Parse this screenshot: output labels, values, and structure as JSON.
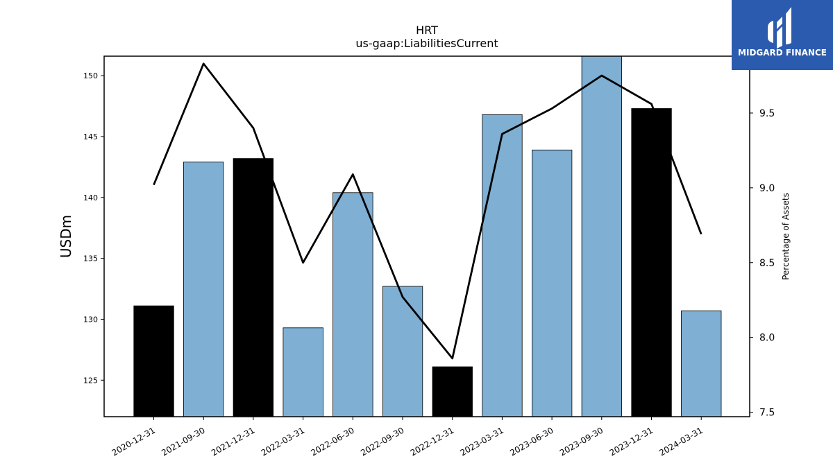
{
  "logo": {
    "name": "MIDGARD FINANCE",
    "background_color": "#2b5bae",
    "icon": "midgard-finance-logo-icon"
  },
  "chart_data": {
    "type": "bar",
    "title": "HRT",
    "subtitle": "us-gaap:LiabilitiesCurrent",
    "ylabel": "USDm",
    "ylabel_right": "Percentage of Assets",
    "categories": [
      "2020-12-31",
      "2021-09-30",
      "2021-12-31",
      "2022-03-31",
      "2022-06-30",
      "2022-09-30",
      "2022-12-31",
      "2023-03-31",
      "2023-06-30",
      "2023-09-30",
      "2023-12-31",
      "2024-03-31"
    ],
    "values": [
      131.1,
      142.9,
      143.2,
      129.3,
      140.4,
      132.7,
      126.1,
      146.8,
      143.9,
      151.6,
      147.3,
      130.7
    ],
    "bar_colors": [
      "#000000",
      "#7fafd3",
      "#000000",
      "#7fafd3",
      "#7fafd3",
      "#7fafd3",
      "#000000",
      "#7fafd3",
      "#7fafd3",
      "#7fafd3",
      "#000000",
      "#7fafd3"
    ],
    "line_series": {
      "axis": "right",
      "color": "#000000",
      "values": [
        9.02,
        9.83,
        9.4,
        8.5,
        9.09,
        8.27,
        7.86,
        9.36,
        9.53,
        9.75,
        9.56,
        8.69
      ]
    },
    "ylim": [
      122,
      151.6
    ],
    "ylim_right": [
      7.47,
      9.88
    ],
    "yticks": [
      125,
      130,
      135,
      140,
      145,
      150
    ],
    "yticks_right": [
      "7.5",
      "8.0",
      "8.5",
      "9.0",
      "9.5"
    ],
    "grid": false,
    "legend": "none"
  }
}
